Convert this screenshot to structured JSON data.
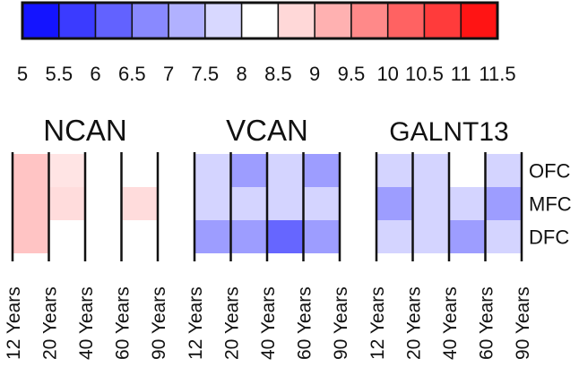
{
  "chart_data": {
    "type": "heatmap",
    "colorbar": {
      "tick_labels": [
        "5",
        "5.5",
        "6",
        "6.5",
        "7",
        "7.5",
        "8",
        "8.5",
        "9",
        "9.5",
        "10",
        "10.5",
        "11",
        "11.5"
      ],
      "range": [
        5,
        11.5
      ],
      "bins": 13,
      "low_color": "#0000ff",
      "mid_color": "#ffffff",
      "high_color": "#ff0000",
      "mid_value": 8.25
    },
    "x_labels": [
      "12 Years",
      "20 Years",
      "40 Years",
      "60 Years",
      "90 Years"
    ],
    "y_labels": [
      "OFC",
      "MFC",
      "DFC"
    ],
    "panels": [
      {
        "title": "NCAN",
        "values": [
          [
            9.0,
            8.6,
            null,
            null
          ],
          [
            9.0,
            8.7,
            null,
            8.7
          ],
          [
            9.0,
            null,
            null,
            null
          ]
        ]
      },
      {
        "title": "VCAN",
        "values": [
          [
            7.7,
            7.0,
            7.7,
            7.0
          ],
          [
            7.7,
            7.7,
            7.7,
            7.7
          ],
          [
            7.0,
            7.0,
            6.3,
            7.0
          ]
        ]
      },
      {
        "title": "GALNT13",
        "values": [
          [
            7.7,
            7.7,
            null,
            7.7
          ],
          [
            7.0,
            7.7,
            7.7,
            7.0
          ],
          [
            7.7,
            7.7,
            7.0,
            7.7
          ]
        ]
      }
    ]
  }
}
